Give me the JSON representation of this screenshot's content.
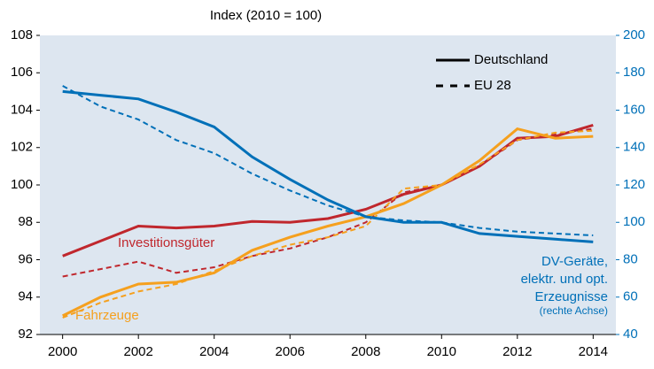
{
  "chart_data": {
    "type": "line",
    "axis_title": "Index (2010 = 100)",
    "x": [
      2000,
      2001,
      2002,
      2003,
      2004,
      2005,
      2006,
      2007,
      2008,
      2009,
      2010,
      2011,
      2012,
      2013,
      2014
    ],
    "xlim": [
      1999.4,
      2014.6
    ],
    "xticks": [
      2000,
      2002,
      2004,
      2006,
      2008,
      2010,
      2012,
      2014
    ],
    "ylim": [
      92,
      108
    ],
    "yticks": [
      92,
      94,
      96,
      98,
      100,
      102,
      104,
      106,
      108
    ],
    "y2lim": [
      40,
      200
    ],
    "y2ticks": [
      40,
      60,
      80,
      100,
      120,
      140,
      160,
      180,
      200
    ],
    "y2_color": "#0070b8",
    "background": "#dde6f0",
    "line_styles": [
      {
        "name": "Deutschland",
        "dash": "solid"
      },
      {
        "name": "EU 28",
        "dash": "dashed"
      }
    ],
    "groups": [
      {
        "label": [
          "Investitionsgüter"
        ],
        "color": "#c0272d",
        "axis": "y",
        "lines": [
          [
            96.2,
            97.0,
            97.8,
            97.7,
            97.8,
            98.05,
            98.0,
            98.2,
            98.7,
            99.5,
            100.0,
            101.0,
            102.5,
            102.6,
            103.2
          ],
          [
            95.1,
            95.5,
            95.9,
            95.3,
            95.6,
            96.2,
            96.6,
            97.2,
            98.0,
            99.6,
            100.0,
            101.0,
            102.4,
            102.7,
            103.0
          ]
        ]
      },
      {
        "label": [
          "Fahrzeuge"
        ],
        "color": "#f5a01e",
        "axis": "y",
        "lines": [
          [
            93.0,
            94.0,
            94.7,
            94.8,
            95.3,
            96.5,
            97.2,
            97.8,
            98.3,
            99.0,
            100.0,
            101.3,
            103.0,
            102.5,
            102.6
          ],
          [
            92.9,
            93.7,
            94.3,
            94.7,
            95.4,
            96.2,
            96.8,
            97.2,
            97.8,
            99.8,
            100.0,
            101.1,
            102.4,
            102.8,
            102.9
          ]
        ]
      },
      {
        "label": [
          "DV-Geräte,",
          "elektr. und opt.",
          "Erzeugnisse"
        ],
        "note": "(rechte Achse)",
        "color": "#0070b8",
        "axis": "y2",
        "lines": [
          [
            170,
            168,
            166,
            159,
            151,
            135,
            123,
            112,
            103,
            100,
            100,
            94,
            92.5,
            91,
            89.5
          ],
          [
            173,
            162,
            155,
            144,
            137,
            126,
            117,
            109,
            103,
            101,
            100,
            97,
            95,
            94,
            93
          ]
        ]
      }
    ]
  }
}
